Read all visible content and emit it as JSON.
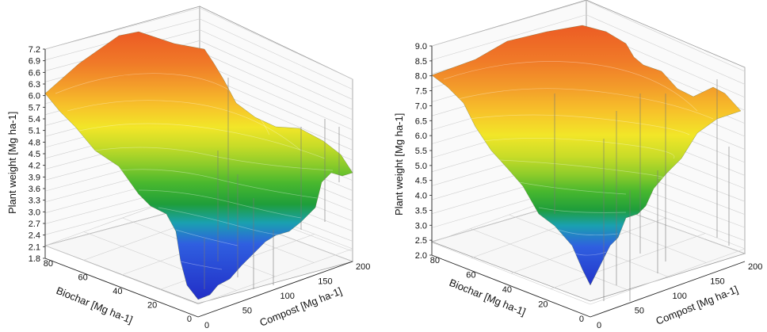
{
  "chart_data": [
    {
      "type": "surface3d",
      "title": "",
      "zlabel": "Plant weight [Mg ha-1]",
      "xlabel": "Compost [Mg ha-1]",
      "ylabel": "Biochar [Mg ha-1]",
      "zlim": [
        1.8,
        7.2
      ],
      "zticks": [
        "1.8",
        "2.1",
        "2.4",
        "2.7",
        "3.0",
        "3.3",
        "3.6",
        "3.9",
        "4.2",
        "4.5",
        "4.8",
        "5.1",
        "5.4",
        "5.7",
        "6.0",
        "6.3",
        "6.6",
        "6.9",
        "7.2"
      ],
      "xticks": [
        "0",
        "50",
        "100",
        "150",
        "200"
      ],
      "yticks": [
        "0",
        "20",
        "40",
        "60",
        "80"
      ],
      "colormap": [
        "#2230c8",
        "#2f5fe0",
        "#1aa0b0",
        "#1f9e3a",
        "#49b82e",
        "#8ccc2a",
        "#c8dc28",
        "#f2e628",
        "#f7c22a",
        "#f39c2a",
        "#f07a28",
        "#ec5a24"
      ],
      "grid": true,
      "corner_z": {
        "Compost 200, Biochar 0": 4.2,
        "Compost 0, Biochar 0": 1.9,
        "Compost 0, Biochar 80": 6.0,
        "Compost 200, Biochar 80": 7.1
      }
    },
    {
      "type": "surface3d",
      "title": "",
      "zlabel": "Plant weight [Mg ha-1]",
      "xlabel": "Compost [Mg ha-1]",
      "ylabel": "Biochar [Mg ha-1]",
      "zlim": [
        2.0,
        9.0
      ],
      "zticks": [
        "2.0",
        "2.5",
        "3.0",
        "3.5",
        "4.0",
        "4.5",
        "5.0",
        "5.5",
        "6.0",
        "6.5",
        "7.0",
        "7.5",
        "8.0",
        "8.5",
        "9.0"
      ],
      "xticks": [
        "0",
        "50",
        "100",
        "150",
        "200"
      ],
      "yticks": [
        "0",
        "20",
        "40",
        "60",
        "80"
      ],
      "colormap": [
        "#2230c8",
        "#2f5fe0",
        "#1aa0b0",
        "#1f9e3a",
        "#49b82e",
        "#8ccc2a",
        "#c8dc28",
        "#f2e628",
        "#f7c22a",
        "#f39c2a",
        "#f07a28",
        "#ec5a24"
      ],
      "grid": true,
      "corner_z": {
        "Compost 200, Biochar 0": 6.5,
        "Compost 0, Biochar 0": 2.2,
        "Compost 0, Biochar 80": 8.1,
        "Compost 200, Biochar 80": 8.9
      }
    }
  ]
}
